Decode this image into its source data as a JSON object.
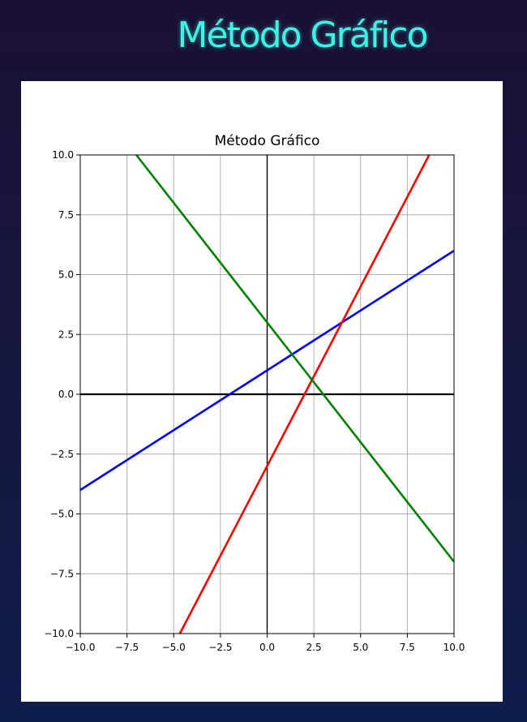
{
  "page": {
    "title": "Método Gráfico"
  },
  "chart_data": {
    "type": "line",
    "title": "Método Gráfico",
    "xlabel": "",
    "ylabel": "",
    "xlim": [
      -10,
      10
    ],
    "ylim": [
      -10,
      10
    ],
    "grid": true,
    "x_ticks": [
      "−10.0",
      "−7.5",
      "−5.0",
      "−2.5",
      "0.0",
      "2.5",
      "5.0",
      "7.5",
      "10.0"
    ],
    "y_ticks": [
      "10.0",
      "7.5",
      "5.0",
      "2.5",
      "0.0",
      "−2.5",
      "−5.0",
      "−7.5",
      "−10.0"
    ],
    "series": [
      {
        "color": "#0000ff",
        "x": [
          -10,
          10
        ],
        "y": [
          -4,
          6
        ]
      },
      {
        "color": "#ff0000",
        "x": [
          -4.67,
          8.67
        ],
        "y": [
          -10,
          10
        ]
      },
      {
        "color": "#008000",
        "x": [
          -7,
          10
        ],
        "y": [
          10,
          -7
        ]
      }
    ]
  }
}
